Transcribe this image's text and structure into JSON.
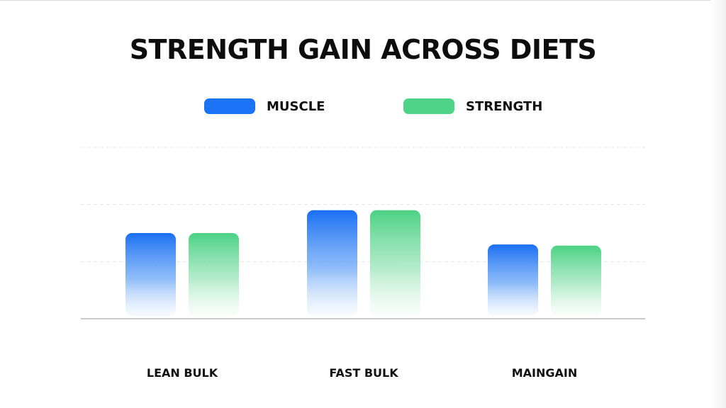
{
  "chart_data": {
    "type": "bar",
    "title": "STRENGTH GAIN ACROSS DIETS",
    "categories": [
      "LEAN BULK",
      "FAST BULK",
      "MAINGAIN"
    ],
    "series": [
      {
        "name": "MUSCLE",
        "color": "#1a73f5",
        "values": [
          1.5,
          1.9,
          1.3
        ]
      },
      {
        "name": "STRENGTH",
        "color": "#4fd388",
        "values": [
          1.5,
          1.9,
          1.28
        ]
      }
    ],
    "ylim": [
      0,
      3
    ],
    "grid": true,
    "legend_position": "top-center",
    "xlabel": "",
    "ylabel": ""
  }
}
